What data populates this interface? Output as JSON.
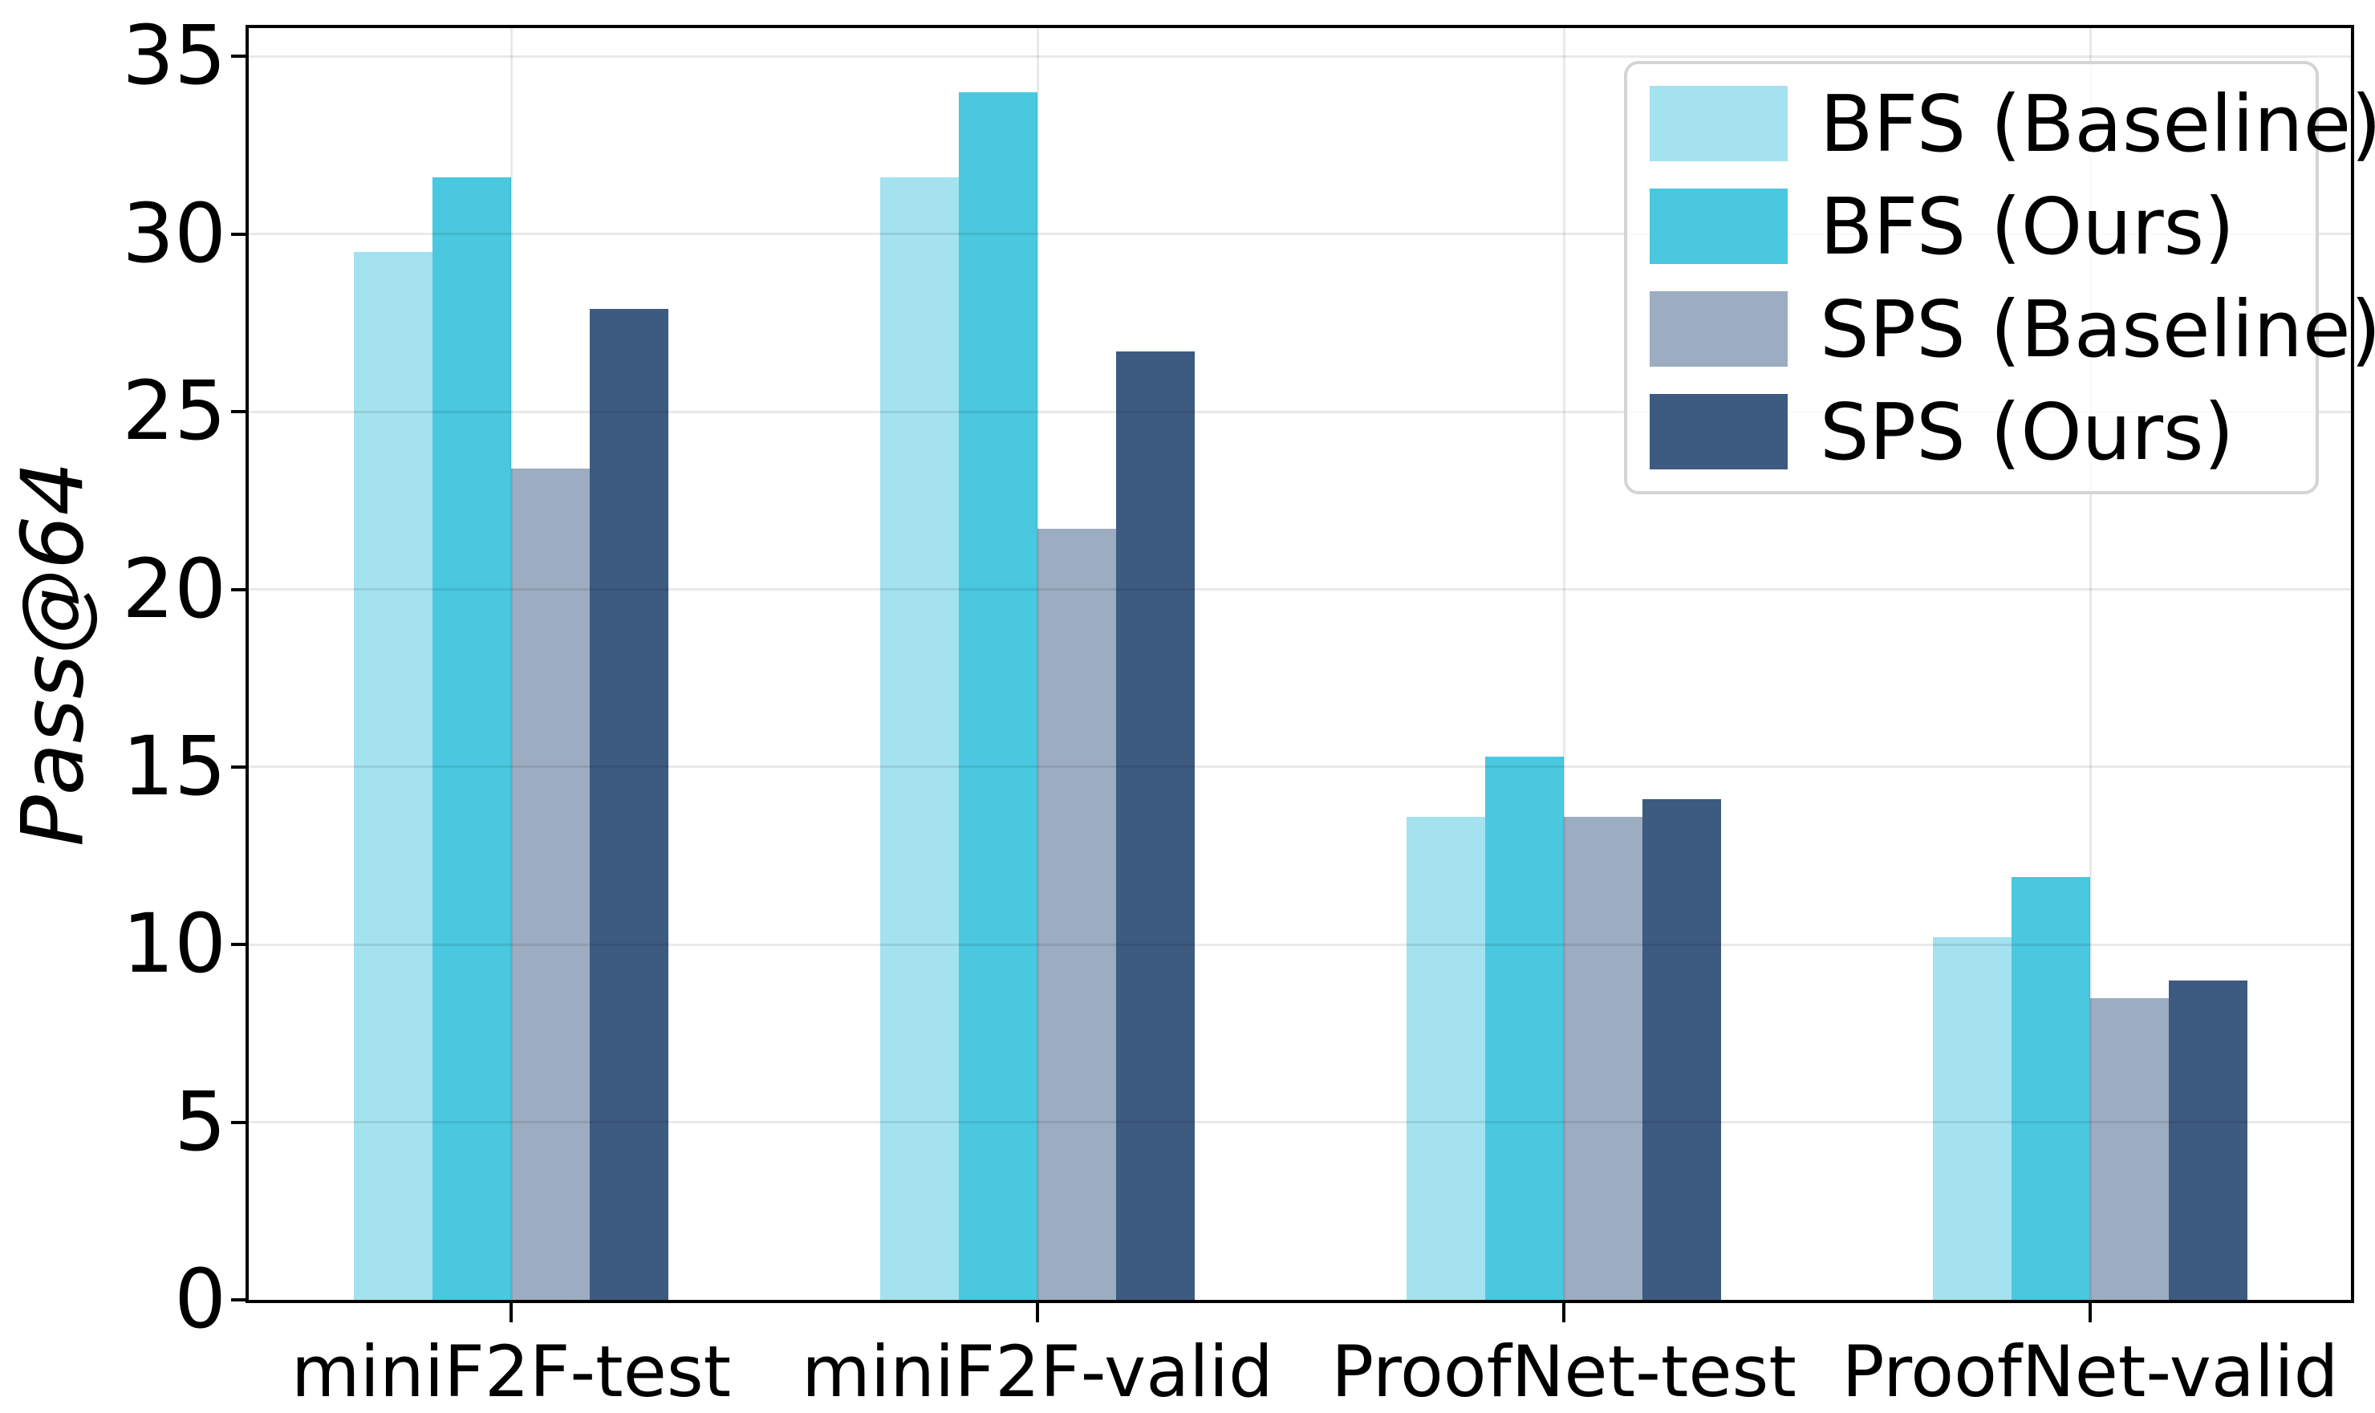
{
  "figure": {
    "background": "#ffffff",
    "grid": true,
    "legend_position": "upper right"
  },
  "chart_data": {
    "type": "bar",
    "title": "",
    "xlabel": "",
    "ylabel": "Pass@64",
    "categories": [
      "miniF2F-test",
      "miniF2F-valid",
      "ProofNet-test",
      "ProofNet-valid"
    ],
    "series": [
      {
        "name": "BFS (Baseline)",
        "color": "#A3E2EE",
        "values": [
          29.5,
          31.6,
          13.6,
          10.2
        ]
      },
      {
        "name": "BFS (Ours)",
        "color": "#49C8E0",
        "values": [
          31.6,
          34.0,
          15.3,
          11.9
        ]
      },
      {
        "name": "SPS (Baseline)",
        "color": "#9CACC1",
        "values": [
          23.4,
          21.7,
          13.6,
          8.5
        ]
      },
      {
        "name": "SPS (Ours)",
        "color": "#3D5A80",
        "values": [
          27.9,
          26.7,
          14.1,
          9.0
        ]
      }
    ],
    "ylim": [
      0,
      35.8
    ],
    "yticks": [
      0,
      5,
      10,
      15,
      20,
      25,
      30,
      35
    ],
    "grid": true,
    "legend_position": "upper right",
    "legend_labels": [
      "BFS (Baseline)",
      "BFS (Ours)",
      "SPS (Baseline)",
      "SPS (Ours)"
    ]
  }
}
